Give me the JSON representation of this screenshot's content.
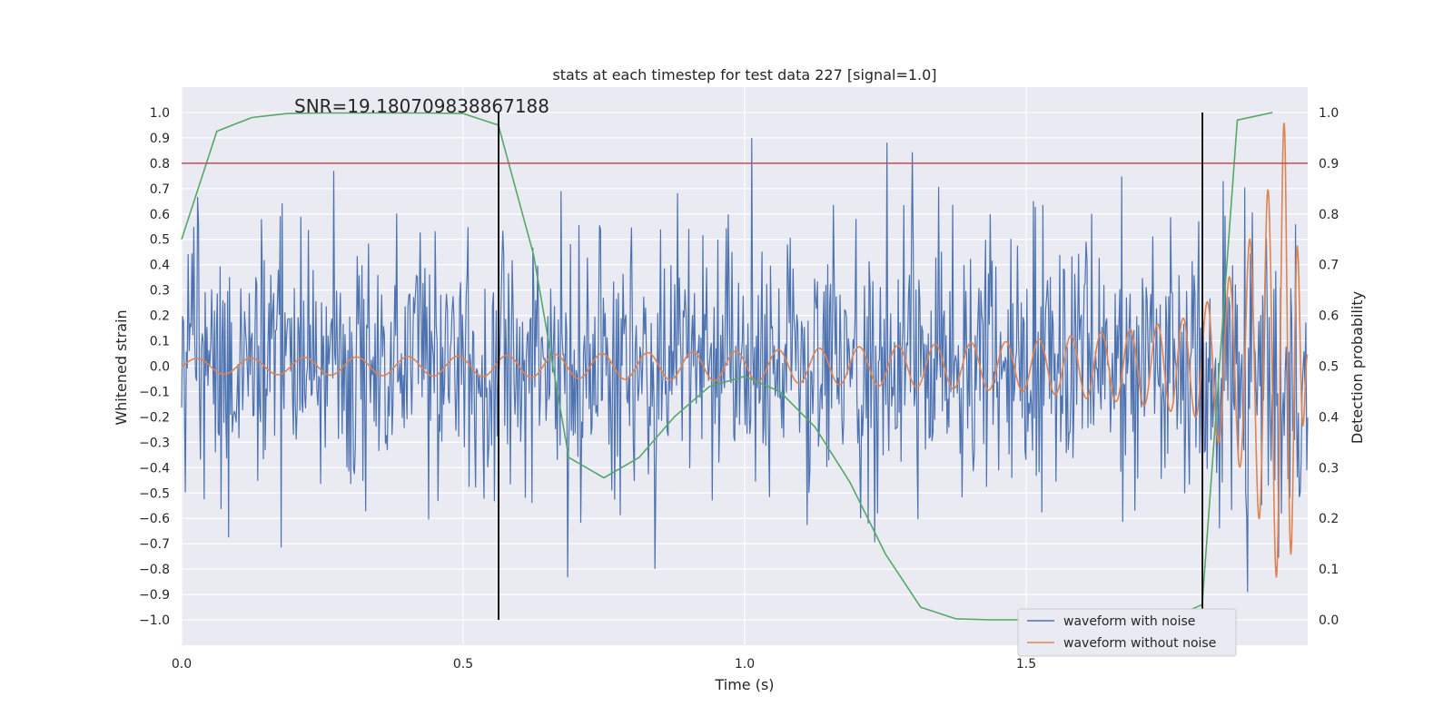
{
  "chart_data": {
    "type": "line",
    "title": "stats at each timestep for test data 227 [signal=1.0]",
    "annotation": "SNR=19.180709838867188",
    "xlabel": "Time (s)",
    "ylabel_left": "Whitened strain",
    "ylabel_right": "Detection probability",
    "xlim": [
      0.0,
      2.0
    ],
    "ylim_left": [
      -1.1,
      1.1
    ],
    "ylim_right": [
      -0.05,
      1.05
    ],
    "x_ticks": [
      "0.0",
      "0.5",
      "1.0",
      "1.5"
    ],
    "x_tick_values": [
      0.0,
      0.5,
      1.0,
      1.5
    ],
    "y_left_ticks": [
      "1.0",
      "0.9",
      "0.8",
      "0.7",
      "0.6",
      "0.5",
      "0.4",
      "0.3",
      "0.2",
      "0.1",
      "0.0",
      "−0.1",
      "−0.2",
      "−0.3",
      "−0.4",
      "−0.5",
      "−0.6",
      "−0.7",
      "−0.8",
      "−0.9",
      "−1.0"
    ],
    "y_left_tick_values": [
      1.0,
      0.9,
      0.8,
      0.7,
      0.6,
      0.5,
      0.4,
      0.3,
      0.2,
      0.1,
      0.0,
      -0.1,
      -0.2,
      -0.3,
      -0.4,
      -0.5,
      -0.6,
      -0.7,
      -0.8,
      -0.9,
      -1.0
    ],
    "y_right_ticks": [
      "1.0",
      "0.9",
      "0.8",
      "0.7",
      "0.6",
      "0.5",
      "0.4",
      "0.3",
      "0.2",
      "0.1",
      "0.0"
    ],
    "y_right_tick_values": [
      1.0,
      0.9,
      0.8,
      0.7,
      0.6,
      0.5,
      0.4,
      0.3,
      0.2,
      0.1,
      0.0
    ],
    "threshold": {
      "axis": "right",
      "value": 0.9,
      "color": "#c44e52"
    },
    "vlines": [
      {
        "x": 0.563,
        "ymin": -1.0,
        "ymax": 1.0,
        "color": "#000000"
      },
      {
        "x": 1.813,
        "ymin": -1.0,
        "ymax": 1.0,
        "color": "#000000"
      }
    ],
    "series": [
      {
        "name": "waveform with noise",
        "color": "#4c72b0",
        "axis": "left",
        "generator": "noise",
        "samples": 1200,
        "seed": 227,
        "std": 0.25,
        "spike_max": 0.9
      },
      {
        "name": "waveform without noise",
        "color": "#dd8452",
        "axis": "left",
        "generator": "chirp",
        "amplitude_points": [
          [
            0.0,
            0.03
          ],
          [
            0.5,
            0.04
          ],
          [
            1.0,
            0.06
          ],
          [
            1.5,
            0.1
          ],
          [
            1.7,
            0.15
          ],
          [
            1.8,
            0.2
          ],
          [
            1.88,
            0.4
          ],
          [
            1.93,
            0.7
          ],
          [
            1.96,
            0.98
          ],
          [
            1.985,
            0.4
          ],
          [
            2.0,
            0.05
          ]
        ],
        "phase_cycles": 58
      },
      {
        "name": "detection probability",
        "color": "#55a868",
        "axis": "right",
        "x": [
          0.0,
          0.0625,
          0.125,
          0.1875,
          0.25,
          0.3125,
          0.375,
          0.4375,
          0.5,
          0.5625,
          0.625,
          0.6875,
          0.75,
          0.8125,
          0.875,
          0.9375,
          1.0,
          1.0625,
          1.125,
          1.1875,
          1.25,
          1.3125,
          1.375,
          1.4375,
          1.5,
          1.5625,
          1.625,
          1.6875,
          1.75,
          1.8125,
          1.875,
          1.9375
        ],
        "y": [
          0.75,
          0.963,
          0.99,
          0.998,
          0.999,
          0.999,
          0.999,
          0.999,
          0.998,
          0.975,
          0.72,
          0.32,
          0.28,
          0.32,
          0.4,
          0.46,
          0.48,
          0.45,
          0.38,
          0.27,
          0.13,
          0.025,
          0.002,
          0.0,
          0.0,
          0.0,
          0.0,
          0.0,
          0.0,
          0.03,
          0.985,
          1.0
        ]
      }
    ],
    "legend": {
      "placement": "lower-right",
      "entries": [
        {
          "label": "waveform with noise",
          "color": "#4c72b0"
        },
        {
          "label": "waveform without noise",
          "color": "#dd8452"
        }
      ]
    },
    "grid": true,
    "facecolor": "#eaeaf2"
  }
}
